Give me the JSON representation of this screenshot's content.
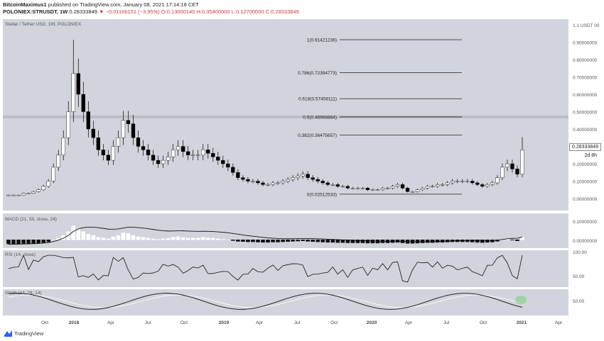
{
  "header": {
    "author": "BitcoinMaximus1",
    "published": " published on TradingView.com, January 08, 2021 17:14:18 CET",
    "symbol": "POLONIEX:STRUSDT, 1W",
    "price": "0.28333849",
    "change": "▼ −0.01166151 (−3.95%)",
    "ohlc": "O:0.13000140 H:0.35400000 L:0.12700000 C:0.28333849"
  },
  "main_panel": {
    "title": "Stellar / Tether USD, 1W, POLONIEX",
    "last_price_tag": "0.28333849",
    "countdown": "2d 8h",
    "y_axis_ticks": [
      "1.1 USDT 00",
      "0.90000000",
      "0.80000000",
      "0.70000000",
      "0.60000000",
      "0.50000000",
      "0.40000000",
      "0.30000000",
      "0.20000000",
      "0.10000000",
      "0.00000000"
    ]
  },
  "fib_levels": [
    {
      "ratio": "1",
      "label": "1(0.91421236)",
      "value": 0.91421236
    },
    {
      "ratio": "0.786",
      "label": "0.786(0.72394773)",
      "value": 0.72394773
    },
    {
      "ratio": "0.618",
      "label": "0.618(0.57458111)",
      "value": 0.57458111
    },
    {
      "ratio": "0.5",
      "label": "0.5(0.46966884)",
      "value": 0.46966884
    },
    {
      "ratio": "0.382",
      "label": "0.382(0.36475657)",
      "value": 0.36475657
    },
    {
      "ratio": "0",
      "label": "0(0.02512533)",
      "value": 0.02512533
    }
  ],
  "macd_panel": {
    "title": "MACD (21, 50, close, 24)",
    "y_axis_ticks": [
      "0.10000000",
      "0.00000000"
    ]
  },
  "rsi_panel": {
    "title": "RSI (14, close)",
    "y_axis_ticks": [
      "100.00",
      "50.00"
    ]
  },
  "stoch_panel": {
    "title": "Stoch (14, 28, 14)",
    "y_axis_ticks": [
      "50.00"
    ]
  },
  "x_axis_ticks": [
    "Oct",
    "2018",
    "Apr",
    "Jul",
    "Oct",
    "2019",
    "Apr",
    "Jul",
    "Oct",
    "2020",
    "Apr",
    "Jul",
    "Oct",
    "2021",
    "Apr"
  ],
  "footer": {
    "brand": "TradingView"
  },
  "colors": {
    "panel_bg": "#d1d4dc",
    "candle_up": "#ffffff",
    "candle_down": "#000000",
    "fib_line": "#222222",
    "stoch_highlight": "#8fd18f"
  },
  "chart_data": {
    "type": "candlestick",
    "title": "Stellar / Tether USD, 1W, POLONIEX",
    "ylim": [
      0,
      1.1
    ],
    "x_ticks": [
      "Oct",
      "2018",
      "Apr",
      "Jul",
      "Oct",
      "2019",
      "Apr",
      "Jul",
      "Oct",
      "2020",
      "Apr",
      "Jul",
      "Oct",
      "2021",
      "Apr"
    ],
    "close_path_approx": [
      0.02,
      0.02,
      0.02,
      0.03,
      0.03,
      0.04,
      0.05,
      0.07,
      0.1,
      0.18,
      0.25,
      0.35,
      0.5,
      0.72,
      0.6,
      0.5,
      0.4,
      0.35,
      0.28,
      0.25,
      0.22,
      0.3,
      0.35,
      0.45,
      0.43,
      0.35,
      0.3,
      0.28,
      0.25,
      0.22,
      0.2,
      0.22,
      0.24,
      0.28,
      0.3,
      0.27,
      0.25,
      0.25,
      0.25,
      0.28,
      0.26,
      0.24,
      0.22,
      0.2,
      0.18,
      0.15,
      0.12,
      0.11,
      0.1,
      0.1,
      0.09,
      0.08,
      0.08,
      0.09,
      0.09,
      0.1,
      0.11,
      0.12,
      0.13,
      0.14,
      0.12,
      0.11,
      0.1,
      0.09,
      0.08,
      0.08,
      0.07,
      0.07,
      0.06,
      0.06,
      0.06,
      0.06,
      0.05,
      0.05,
      0.05,
      0.06,
      0.06,
      0.07,
      0.08,
      0.06,
      0.04,
      0.04,
      0.05,
      0.06,
      0.07,
      0.07,
      0.08,
      0.08,
      0.09,
      0.1,
      0.1,
      0.1,
      0.1,
      0.09,
      0.08,
      0.07,
      0.08,
      0.09,
      0.12,
      0.18,
      0.2,
      0.17,
      0.14,
      0.28
    ]
  }
}
